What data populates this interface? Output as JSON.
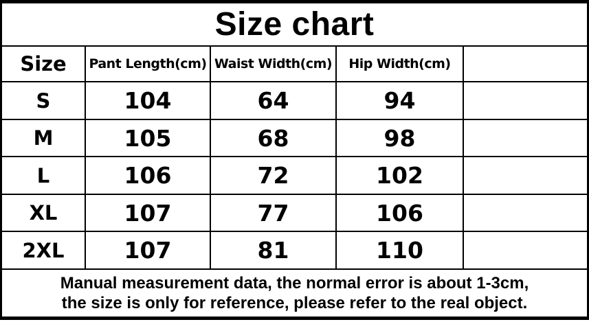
{
  "title": "Size chart",
  "chart_data": {
    "type": "table",
    "title": "Size chart",
    "columns": [
      "Size",
      "Pant Length(cm)",
      "Waist Width(cm)",
      "Hip Width(cm)",
      ""
    ],
    "rows": [
      [
        "S",
        "104",
        "64",
        "94",
        ""
      ],
      [
        "M",
        "105",
        "68",
        "98",
        ""
      ],
      [
        "L",
        "106",
        "72",
        "102",
        ""
      ],
      [
        "XL",
        "107",
        "77",
        "106",
        ""
      ],
      [
        "2XL",
        "107",
        "81",
        "110",
        ""
      ]
    ],
    "note_lines": [
      "Manual measurement data, the normal error is about 1-3cm,",
      "the size is only for reference, please refer to the real object."
    ]
  },
  "colors": {
    "text": "#000000",
    "border": "#000000",
    "background": "#ffffff"
  }
}
